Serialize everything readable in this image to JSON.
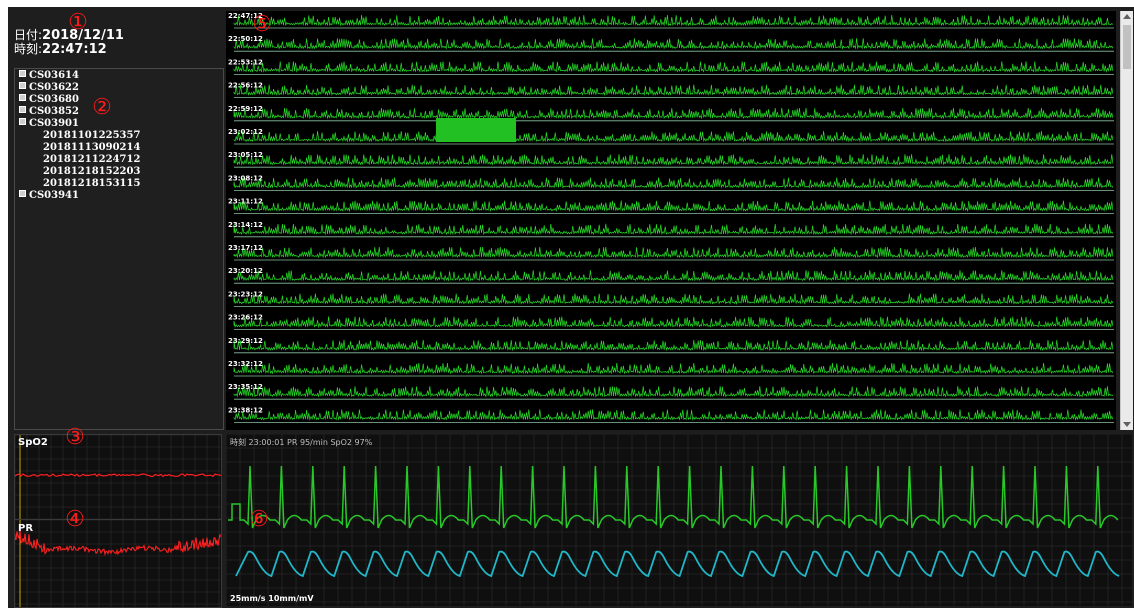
{
  "datetime": {
    "date_label": "日付:",
    "date_value": "2018/12/11",
    "time_label": "時刻:",
    "time_value": "22:47:12"
  },
  "tree": {
    "items": [
      {
        "label": "CS03614",
        "expanded": false
      },
      {
        "label": "CS03622",
        "expanded": false
      },
      {
        "label": "CS03680",
        "expanded": false
      },
      {
        "label": "CS03852",
        "expanded": false
      },
      {
        "label": "CS03901",
        "expanded": true,
        "children": [
          "20181101225357",
          "20181113090214",
          "20181211224712",
          "20181218152203",
          "20181218153115"
        ]
      },
      {
        "label": "CS03941",
        "expanded": false
      }
    ]
  },
  "trend": {
    "strip_times": [
      "22:47:12",
      "22:50:12",
      "22:53:12",
      "22:56:12",
      "22:59:12",
      "23:02:12",
      "23:05:12",
      "23:08:12",
      "23:11:12",
      "23:14:12",
      "23:17:12",
      "23:20:12",
      "23:23:12",
      "23:26:12",
      "23:29:12",
      "23:32:12",
      "23:35:12",
      "23:38:12"
    ],
    "trace_color": "#28e028",
    "baseline_color": "#b8ffd8"
  },
  "spo2": {
    "label": "SpO2",
    "trace_color": "#ff2020"
  },
  "pr": {
    "label": "PR",
    "trace_color": "#ff2020"
  },
  "waveform": {
    "header": "時刻 23:00:01  PR 95/min SpO2 97%",
    "footer": "25mm/s 10mm/mV",
    "ecg_color": "#28c828",
    "pleth_color": "#20b8c8"
  },
  "markers": [
    "①",
    "②",
    "③",
    "④",
    "⑤",
    "⑥"
  ],
  "colors": {
    "marker": "#ff1a1a",
    "grid": "#303030",
    "selection": "#22c022"
  }
}
